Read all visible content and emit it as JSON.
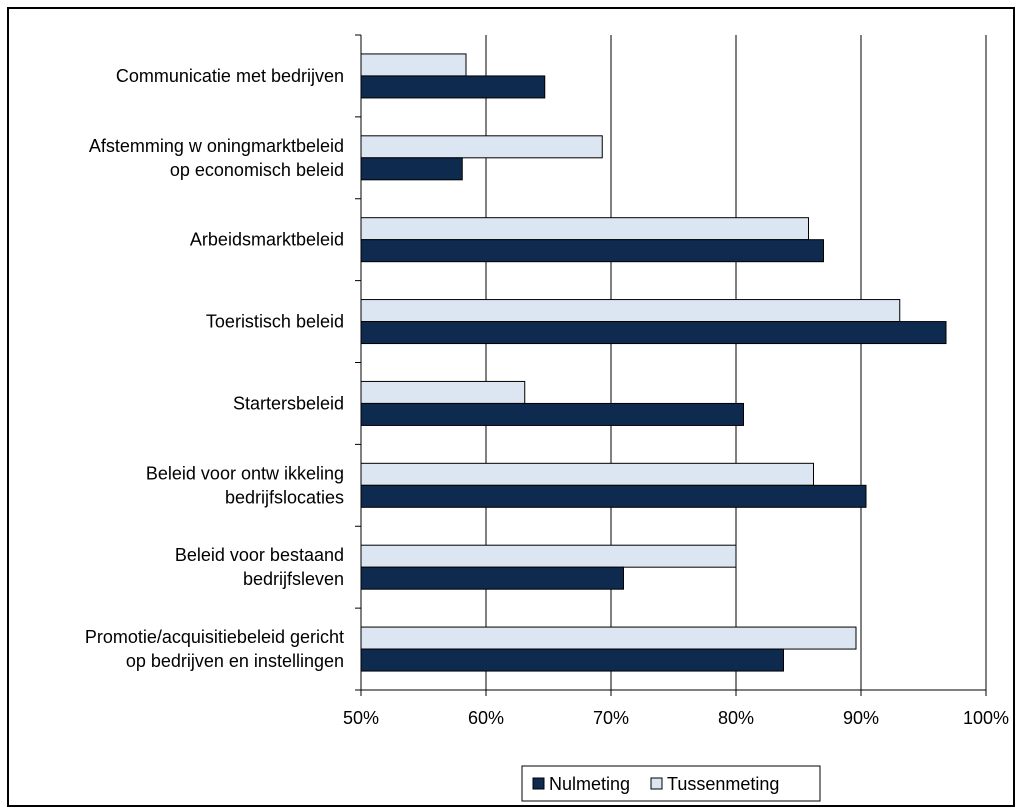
{
  "chart_data": {
    "type": "bar",
    "orientation": "horizontal",
    "categories": [
      [
        "Communicatie met bedrijven"
      ],
      [
        "Afstemming w oningmarktbeleid",
        "op economisch beleid"
      ],
      [
        "Arbeidsmarktbeleid"
      ],
      [
        "Toeristisch beleid"
      ],
      [
        "Startersbeleid"
      ],
      [
        "Beleid voor ontw ikkeling",
        "bedrijfslocaties"
      ],
      [
        "Beleid voor bestaand",
        "bedrijfsleven"
      ],
      [
        "Promotie/acquisitiebeleid gericht",
        "op bedrijven en instellingen"
      ]
    ],
    "series": [
      {
        "name": "Nulmeting",
        "color": "#0f2a4f",
        "values": [
          64.7,
          58.1,
          87.0,
          96.8,
          80.6,
          90.4,
          71.0,
          83.8
        ]
      },
      {
        "name": "Tussenmeting",
        "color": "#dce6f2",
        "values": [
          58.4,
          69.3,
          85.8,
          93.1,
          63.1,
          86.2,
          80.0,
          89.6
        ]
      }
    ],
    "xlim": [
      50,
      100
    ],
    "xticks": [
      50,
      60,
      70,
      80,
      90,
      100
    ],
    "xtick_labels": [
      "50%",
      "60%",
      "70%",
      "80%",
      "90%",
      "100%"
    ],
    "grid": "vertical",
    "legend_position": "bottom"
  }
}
